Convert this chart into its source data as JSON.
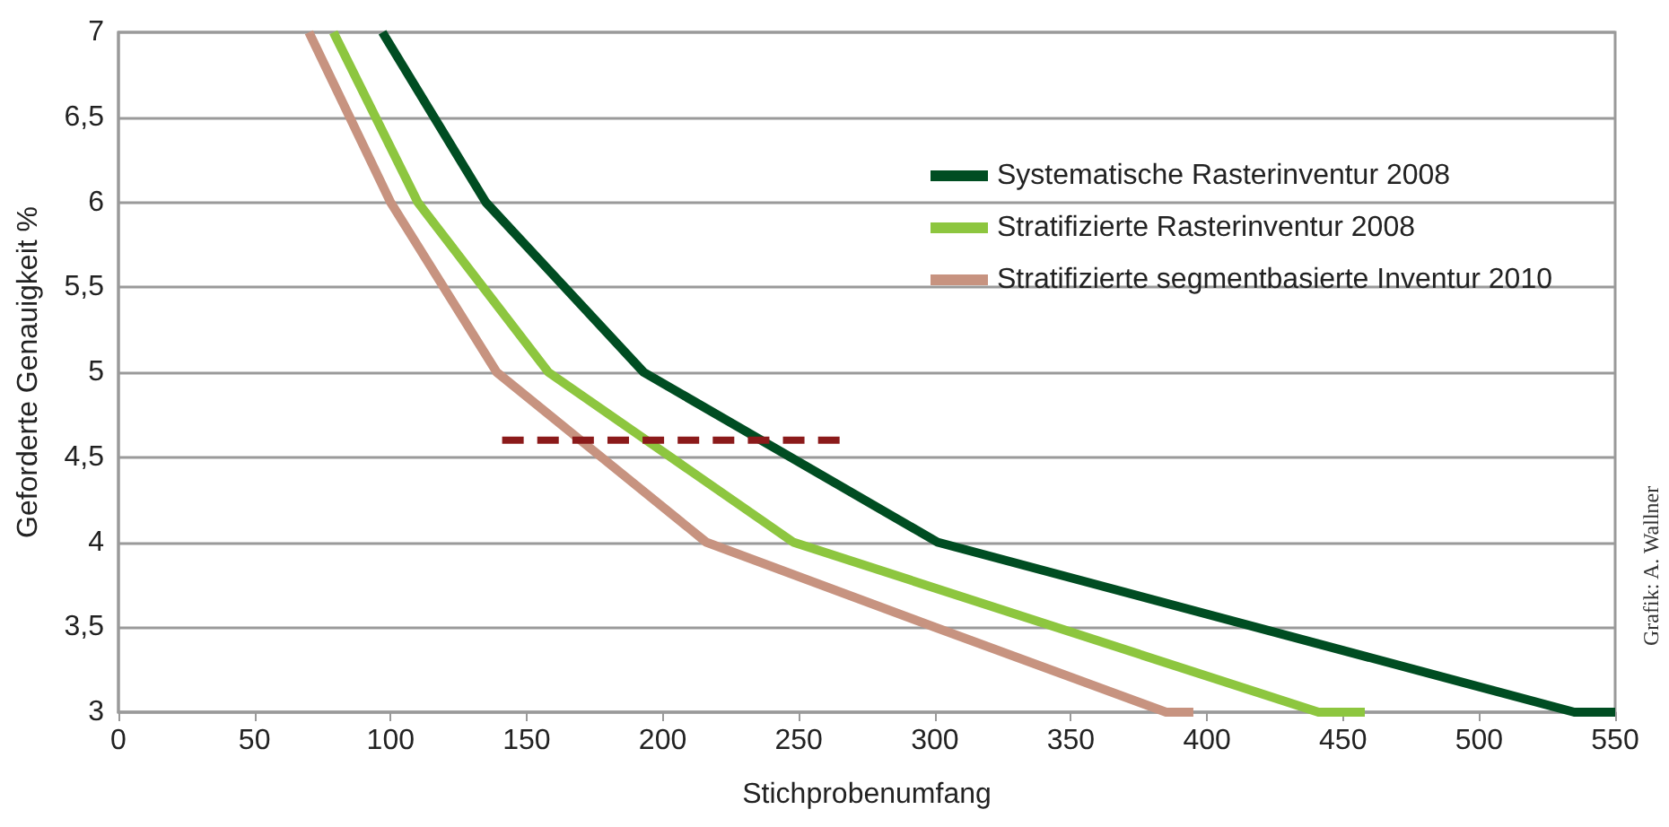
{
  "chart_data": {
    "type": "line",
    "xlabel": "Stichprobenumfang",
    "ylabel": "Geforderte Genauigkeit %",
    "annotations": [
      "Grafik: A. Wallner"
    ],
    "series": [
      {
        "name": "Systematische Rasterinventur 2008",
        "color": "#004d22",
        "x": [
          97,
          135,
          193,
          301,
          535,
          550
        ],
        "values": [
          7,
          6,
          5,
          4,
          3,
          3
        ]
      },
      {
        "name": "Stratifizierte Rasterinventur 2008",
        "color": "#8dc63f",
        "x": [
          79,
          110,
          158,
          248,
          441,
          458
        ],
        "values": [
          7,
          6,
          5,
          4,
          3,
          3
        ]
      },
      {
        "name": "Stratifizierte segmentbasierte Inventur 2010",
        "color": "#c79380",
        "x": [
          70,
          100,
          139,
          216,
          300,
          385,
          395
        ],
        "values": [
          7,
          6,
          5,
          4,
          3.5,
          3,
          3
        ]
      },
      {
        "color": "#8b1a1a",
        "line_style": "dashed",
        "x": [
          141,
          265
        ],
        "values": [
          4.6,
          4.6
        ]
      }
    ],
    "xlim": [
      0,
      550
    ],
    "xticks": [
      0,
      50,
      100,
      150,
      200,
      250,
      300,
      350,
      400,
      450,
      500,
      550
    ],
    "ylim": [
      3,
      7
    ],
    "yticks": [
      3,
      {
        "value": 3.5,
        "label": "3,5"
      },
      4,
      {
        "value": 4.5,
        "label": "4,5"
      },
      5,
      {
        "value": 5.5,
        "label": "5,5"
      },
      6,
      {
        "value": 6.5,
        "label": "6,5"
      },
      7
    ],
    "grid": "y",
    "legend": "top right",
    "marker": "none",
    "line_style": "solid"
  }
}
